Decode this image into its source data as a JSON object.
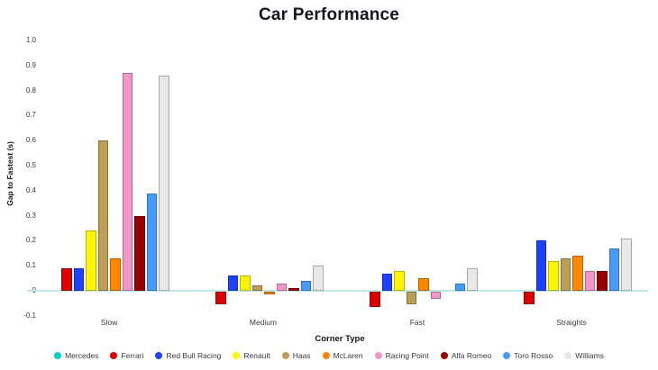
{
  "chart": {
    "title": "Car Performance",
    "x_axis_label": "Corner Type",
    "y_axis_label": "Gap to Fastest (s)"
  },
  "chart_data": {
    "type": "bar",
    "title": "Car Performance",
    "xlabel": "Corner Type",
    "ylabel": "Gap to Fastest (s)",
    "categories": [
      "Slow",
      "Medium",
      "Fast",
      "Straights"
    ],
    "series": [
      {
        "name": "Mercedes",
        "color": "#00D2BE",
        "values": [
          0.0,
          0.0,
          0.0,
          0.0
        ]
      },
      {
        "name": "Ferrari",
        "color": "#DC0000",
        "values": [
          0.09,
          -0.05,
          -0.06,
          -0.05
        ]
      },
      {
        "name": "Red Bull Racing",
        "color": "#1E41FF",
        "values": [
          0.09,
          0.06,
          0.07,
          0.2
        ]
      },
      {
        "name": "Renault",
        "color": "#FFF500",
        "values": [
          0.24,
          0.06,
          0.08,
          0.12
        ]
      },
      {
        "name": "Haas",
        "color": "#BD9E57",
        "values": [
          0.6,
          0.02,
          -0.05,
          0.13
        ]
      },
      {
        "name": "McLaren",
        "color": "#FF8700",
        "values": [
          0.13,
          -0.01,
          0.05,
          0.14
        ]
      },
      {
        "name": "Racing Point",
        "color": "#F596C8",
        "values": [
          0.87,
          0.03,
          -0.03,
          0.08
        ]
      },
      {
        "name": "Alfa Romeo",
        "color": "#9B0000",
        "values": [
          0.3,
          0.01,
          0.0,
          0.08
        ]
      },
      {
        "name": "Toro Rosso",
        "color": "#469BFF",
        "values": [
          0.39,
          0.04,
          0.03,
          0.17
        ]
      },
      {
        "name": "Williams",
        "color": "#E8E8E8",
        "values": [
          0.86,
          0.1,
          0.09,
          0.21
        ]
      }
    ],
    "y_ticks": [
      "1.0",
      "0.9",
      "0.8",
      "0.7",
      "0.6",
      "0.5",
      "0.4",
      "0.3",
      "0.2",
      "0.1",
      "0",
      "-0.1"
    ],
    "ylim": [
      -0.1,
      1.0
    ],
    "grid": false,
    "zero_line_color": "#BCE8E6",
    "legend_position": "bottom",
    "title_color": "#15151E",
    "tick_color": "#3A3A3A"
  }
}
